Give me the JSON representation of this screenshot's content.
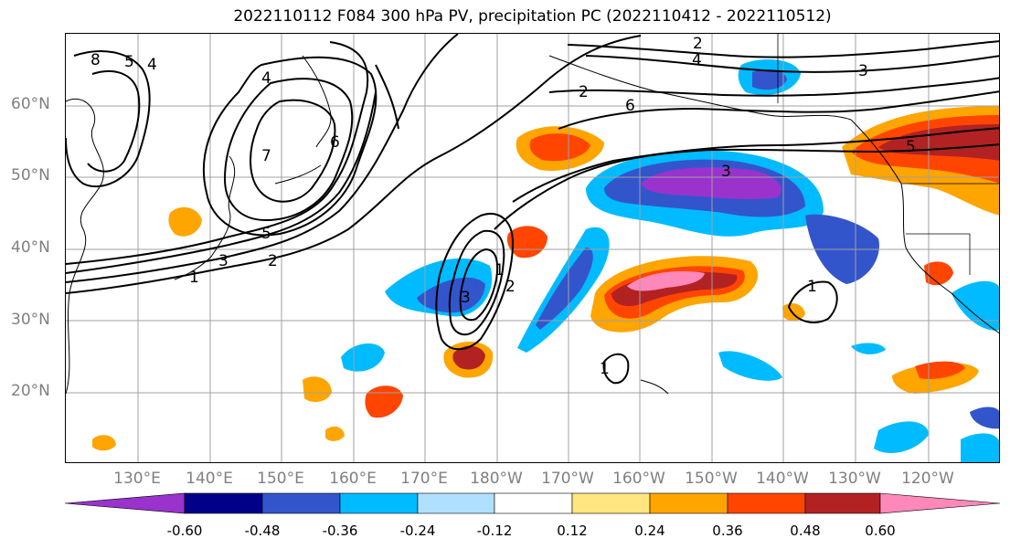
{
  "title": "2022110112 F084 300 hPa PV, precipitation PC (2022110412 - 2022110512)",
  "lat_labels": [
    "60°N",
    "50°N",
    "40°N",
    "30°N",
    "20°N"
  ],
  "lon_labels": [
    "130°E",
    "140°E",
    "150°E",
    "160°E",
    "170°E",
    "180°W",
    "170°W",
    "160°W",
    "150°W",
    "140°W",
    "130°W",
    "120°W"
  ],
  "colorbar": {
    "ticks": [
      "-0.60",
      "-0.48",
      "-0.36",
      "-0.24",
      "-0.12",
      "0.12",
      "0.24",
      "0.36",
      "0.48",
      "0.60"
    ],
    "colors": [
      "#9933cc",
      "#000088",
      "#3355cc",
      "#00bbff",
      "#b0e0ff",
      "#ffffff",
      "#ffe680",
      "#ffa500",
      "#ff4500",
      "#b22222",
      "#ff88bb"
    ]
  },
  "contour_labels": [
    "1",
    "2",
    "3",
    "4",
    "5",
    "6",
    "7",
    "8",
    "3",
    "2",
    "5",
    "1",
    "2",
    "3",
    "4",
    "6",
    "3",
    "1",
    "1",
    "2",
    "4",
    "5"
  ]
}
